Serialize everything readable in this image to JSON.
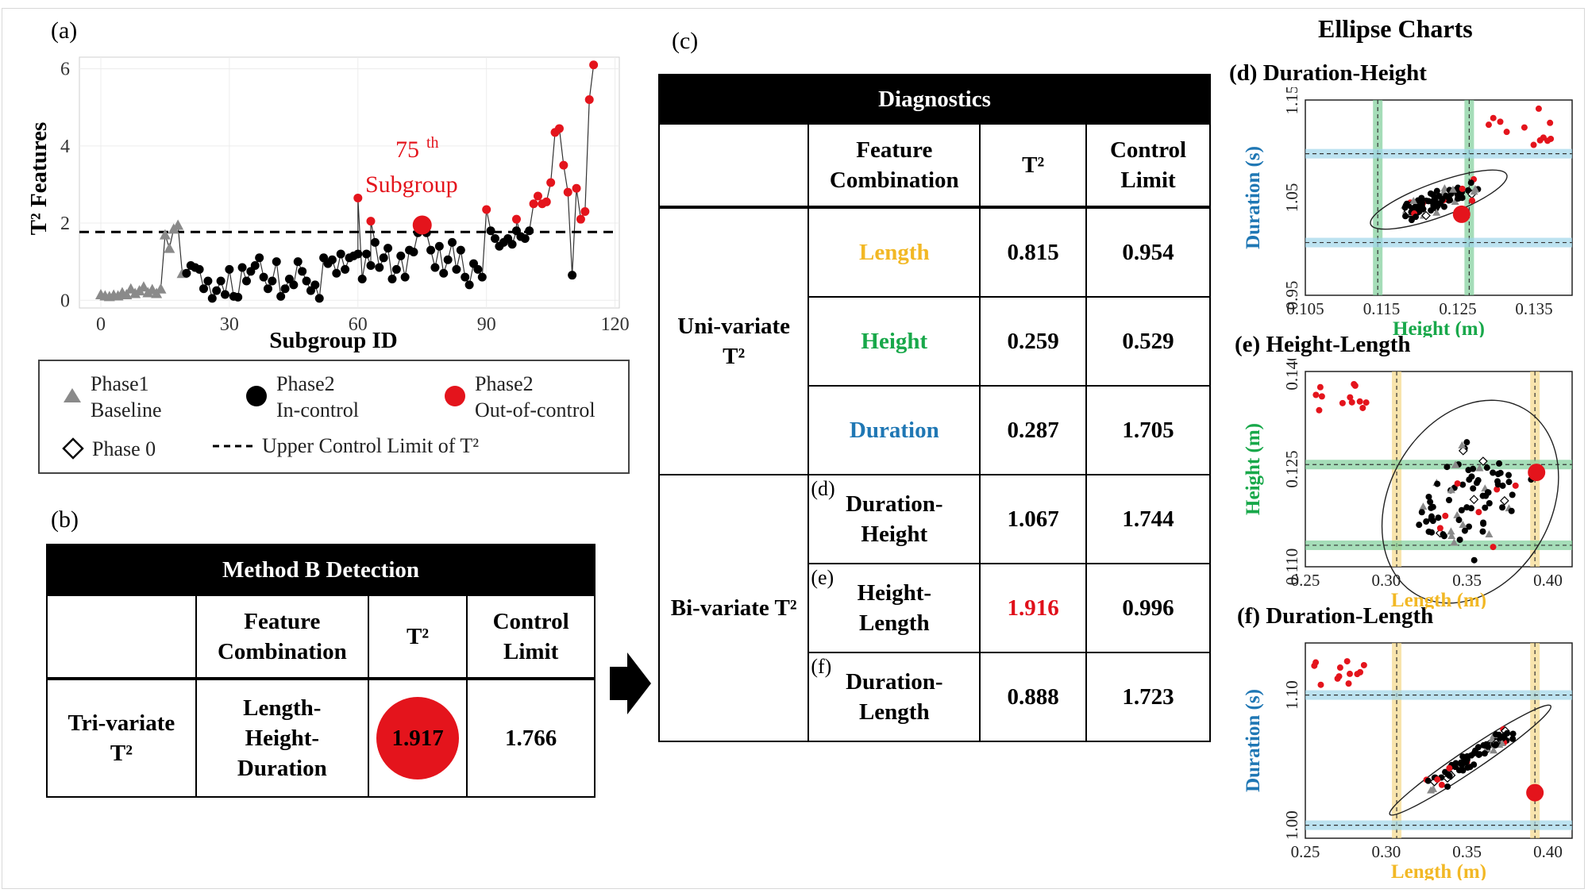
{
  "labels": {
    "a": "(a)",
    "b": "(b)",
    "c": "(c)",
    "ellipse_title": "Ellipse Charts",
    "d_title": "(d) Duration-Height",
    "e_title": "(e) Height-Length",
    "f_title": "(f) Duration-Length"
  },
  "annotation": {
    "ordinal": "75",
    "suffix": "th",
    "word": "Subgroup"
  },
  "legend": {
    "phase1": [
      "Phase1",
      "Baseline"
    ],
    "phase2_in": [
      "Phase2",
      "In-control"
    ],
    "phase2_out": [
      "Phase2",
      "Out-of-control"
    ],
    "phase0": "Phase 0",
    "ucl": "Upper Control Limit of T²"
  },
  "method_b": {
    "title": "Method B Detection",
    "headers": [
      "",
      "Feature Combination",
      "T²",
      "Control Limit"
    ],
    "row": {
      "label": "Tri-variate T²",
      "combo": "Length-Height-Duration",
      "t2": "1.917",
      "limit": "1.766"
    }
  },
  "diagnostics": {
    "title": "Diagnostics",
    "headers": [
      "",
      "Feature Combination",
      "T²",
      "Control Limit"
    ],
    "uni_label": "Uni-variate T²",
    "bi_label": "Bi-variate T²",
    "uni_rows": [
      {
        "combo": "Length",
        "t2": "0.815",
        "limit": "0.954",
        "color": "#f2b825"
      },
      {
        "combo": "Height",
        "t2": "0.259",
        "limit": "0.529",
        "color": "#18a84a"
      },
      {
        "combo": "Duration",
        "t2": "0.287",
        "limit": "1.705",
        "color": "#1f77b4"
      }
    ],
    "bi_rows": [
      {
        "tag": "(d)",
        "combo": "Duration-Height",
        "t2": "1.067",
        "limit": "1.744",
        "t2_color": "#000000"
      },
      {
        "tag": "(e)",
        "combo": "Height-Length",
        "t2": "1.916",
        "limit": "0.996",
        "t2_color": "#e0101a"
      },
      {
        "tag": "(f)",
        "combo": "Duration-Length",
        "t2": "0.888",
        "limit": "1.723",
        "t2_color": "#000000"
      }
    ]
  },
  "colors": {
    "red": "#e4141c",
    "gray": "#8a8a8a",
    "green_band": "#7fcf9a",
    "blue_band": "#9fd6ea",
    "yellow_band": "#f5d98a",
    "length": "#f2b825",
    "height": "#18a84a",
    "duration": "#1f77b4"
  },
  "chart_data": [
    {
      "id": "a",
      "type": "line",
      "xlabel": "Subgroup ID",
      "ylabel": "T² Features",
      "xlim": [
        -5,
        121
      ],
      "ylim": [
        -0.2,
        6.3
      ],
      "xticks": [
        0,
        30,
        60,
        90,
        120
      ],
      "yticks": [
        0,
        2,
        4,
        6
      ],
      "ucl": 1.77,
      "series": [
        {
          "name": "Phase1 Baseline",
          "points": [
            [
              0,
              0.15
            ],
            [
              1,
              0.12
            ],
            [
              2,
              0.1
            ],
            [
              3,
              0.14
            ],
            [
              4,
              0.12
            ],
            [
              5,
              0.2
            ],
            [
              6,
              0.15
            ],
            [
              7,
              0.3
            ],
            [
              8,
              0.18
            ],
            [
              9,
              0.25
            ],
            [
              10,
              0.35
            ],
            [
              11,
              0.2
            ],
            [
              12,
              0.28
            ],
            [
              13,
              0.18
            ],
            [
              14,
              0.3
            ],
            [
              15,
              1.7
            ],
            [
              16,
              1.35
            ],
            [
              17,
              1.85
            ],
            [
              18,
              1.95
            ],
            [
              19,
              0.7
            ]
          ]
        },
        {
          "name": "Phase2 In-control",
          "points": [
            [
              20,
              0.7
            ],
            [
              21,
              0.9
            ],
            [
              22,
              0.85
            ],
            [
              23,
              0.8
            ],
            [
              24,
              0.3
            ],
            [
              25,
              0.5
            ],
            [
              26,
              0.05
            ],
            [
              27,
              0.25
            ],
            [
              28,
              0.5
            ],
            [
              29,
              0.15
            ],
            [
              30,
              0.8
            ],
            [
              31,
              0.1
            ],
            [
              32,
              0.08
            ],
            [
              33,
              0.85
            ],
            [
              34,
              0.5
            ],
            [
              35,
              0.75
            ],
            [
              36,
              0.9
            ],
            [
              37,
              1.1
            ],
            [
              38,
              0.6
            ],
            [
              39,
              0.3
            ],
            [
              40,
              0.5
            ],
            [
              41,
              1.0
            ],
            [
              42,
              0.1
            ],
            [
              43,
              0.3
            ],
            [
              44,
              0.55
            ],
            [
              45,
              0.4
            ],
            [
              46,
              1.0
            ],
            [
              47,
              0.75
            ],
            [
              48,
              0.5
            ],
            [
              49,
              0.25
            ],
            [
              50,
              0.4
            ],
            [
              51,
              0.05
            ],
            [
              52,
              1.1
            ],
            [
              53,
              0.95
            ],
            [
              54,
              1.05
            ],
            [
              55,
              0.7
            ],
            [
              56,
              1.2
            ],
            [
              57,
              0.8
            ],
            [
              58,
              1.1
            ],
            [
              59,
              1.15
            ],
            [
              60,
              1.2
            ],
            [
              61,
              0.55
            ],
            [
              62,
              1.2
            ],
            [
              63,
              0.9
            ],
            [
              64,
              1.5
            ],
            [
              65,
              0.85
            ],
            [
              66,
              1.1
            ],
            [
              67,
              1.35
            ],
            [
              68,
              0.55
            ],
            [
              69,
              0.8
            ],
            [
              70,
              1.15
            ],
            [
              71,
              0.6
            ],
            [
              72,
              1.3
            ],
            [
              73,
              1.25
            ],
            [
              74,
              1.75
            ],
            [
              76,
              1.75
            ],
            [
              77,
              1.3
            ],
            [
              78,
              0.85
            ],
            [
              79,
              1.4
            ],
            [
              80,
              0.7
            ],
            [
              81,
              1.05
            ],
            [
              82,
              1.5
            ],
            [
              83,
              0.8
            ],
            [
              84,
              1.3
            ],
            [
              85,
              0.6
            ],
            [
              86,
              0.4
            ],
            [
              87,
              0.95
            ],
            [
              88,
              0.8
            ],
            [
              89,
              0.6
            ],
            [
              91,
              1.8
            ],
            [
              92,
              1.6
            ],
            [
              93,
              1.4
            ],
            [
              94,
              1.5
            ],
            [
              95,
              1.6
            ],
            [
              96,
              1.45
            ],
            [
              97,
              1.8
            ],
            [
              98,
              1.65
            ],
            [
              99,
              1.6
            ],
            [
              100,
              1.8
            ],
            [
              110,
              0.65
            ]
          ]
        },
        {
          "name": "Phase2 Out-of-control",
          "points": [
            [
              60,
              2.65
            ],
            [
              63,
              2.05
            ],
            [
              75,
              1.95
            ],
            [
              90,
              2.35
            ],
            [
              97,
              2.1
            ],
            [
              101,
              2.5
            ],
            [
              102,
              2.7
            ],
            [
              103,
              2.5
            ],
            [
              104,
              2.55
            ],
            [
              105,
              3.05
            ],
            [
              106,
              4.35
            ],
            [
              107,
              4.45
            ],
            [
              108,
              3.5
            ],
            [
              109,
              2.8
            ],
            [
              111,
              2.9
            ],
            [
              112,
              2.1
            ],
            [
              113,
              2.3
            ],
            [
              114,
              5.2
            ],
            [
              115,
              6.1
            ]
          ]
        }
      ],
      "line_order": "x"
    },
    {
      "id": "d",
      "type": "scatter",
      "xlabel": "Height (m)",
      "ylabel": "Duration (s)",
      "xlim": [
        0.105,
        0.14
      ],
      "ylim": [
        0.95,
        1.15
      ],
      "xticks": [
        0.105,
        0.115,
        0.125,
        0.135
      ],
      "yticks": [
        0.95,
        1.05,
        1.15
      ],
      "vlines": [
        0.1145,
        0.1265
      ],
      "hlines": [
        1.004,
        1.095
      ],
      "ellipse": {
        "cx": 0.1225,
        "cy": 1.048,
        "rx": 0.0095,
        "ry": 0.032,
        "rot": -20
      },
      "highlight": [
        0.1255,
        1.033
      ]
    },
    {
      "id": "e",
      "type": "scatter",
      "xlabel": "Length (m)",
      "ylabel": "Height (m)",
      "xlim": [
        0.25,
        0.415
      ],
      "ylim": [
        0.11,
        0.14
      ],
      "xticks": [
        0.25,
        0.3,
        0.35,
        0.4
      ],
      "yticks": [
        0.11,
        0.125,
        0.14
      ],
      "vlines": [
        0.3065,
        0.392
      ],
      "hlines": [
        0.1133,
        0.1257
      ],
      "ellipse": {
        "cx": 0.352,
        "cy": 0.12,
        "rx": 0.05,
        "ry": 0.03,
        "rot": 30
      },
      "highlight": [
        0.393,
        0.1245
      ]
    },
    {
      "id": "f",
      "type": "scatter",
      "xlabel": "Length (m)",
      "ylabel": "Duration (s)",
      "xlim": [
        0.25,
        0.415
      ],
      "ylim": [
        0.99,
        1.14
      ],
      "xticks": [
        0.25,
        0.3,
        0.35,
        0.4
      ],
      "yticks": [
        1.0,
        1.1
      ],
      "vlines": [
        0.3065,
        0.392
      ],
      "hlines": [
        1.0,
        1.1
      ],
      "ellipse": {
        "cx": 0.352,
        "cy": 1.05,
        "rx": 0.06,
        "ry": 0.015,
        "rot": -34
      },
      "highlight": [
        0.392,
        1.025
      ]
    }
  ]
}
